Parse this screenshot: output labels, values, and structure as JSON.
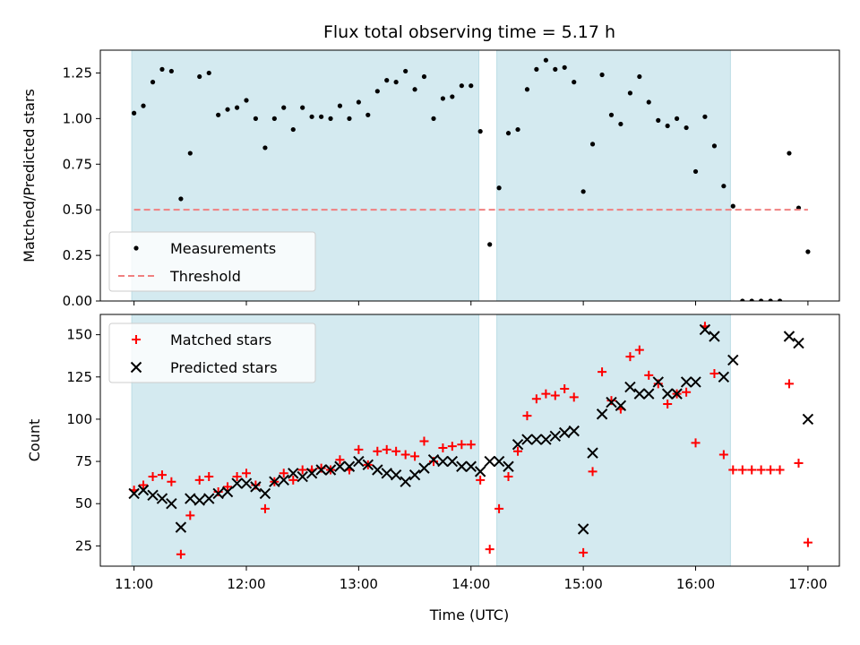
{
  "chart_data": {
    "type": "scatter",
    "title": "Flux total observing time = 5.17 h",
    "xlabel": "Time (UTC)",
    "x_ticks": [
      "11:00",
      "12:00",
      "13:00",
      "14:00",
      "15:00",
      "16:00",
      "17:00"
    ],
    "x_unit": "hours UTC",
    "shaded_intervals": [
      [
        10.98,
        14.07
      ],
      [
        14.23,
        16.31
      ]
    ],
    "shade_color": "#d4eaf0",
    "panels": [
      {
        "ylabel": "Matched/Predicted stars",
        "ylim": [
          0,
          1.375
        ],
        "y_ticks": [
          "0.00",
          "0.25",
          "0.50",
          "0.75",
          "1.00",
          "1.25"
        ],
        "legend_position": "lower-left",
        "series": [
          {
            "name": "Measurements",
            "marker": "dot",
            "color": "#000000",
            "points": [
              [
                11.0,
                1.03
              ],
              [
                11.083,
                1.07
              ],
              [
                11.167,
                1.2
              ],
              [
                11.25,
                1.27
              ],
              [
                11.333,
                1.26
              ],
              [
                11.417,
                0.56
              ],
              [
                11.5,
                0.81
              ],
              [
                11.583,
                1.23
              ],
              [
                11.667,
                1.25
              ],
              [
                11.75,
                1.02
              ],
              [
                11.833,
                1.05
              ],
              [
                11.917,
                1.06
              ],
              [
                12.0,
                1.1
              ],
              [
                12.083,
                1.0
              ],
              [
                12.167,
                0.84
              ],
              [
                12.25,
                1.0
              ],
              [
                12.333,
                1.06
              ],
              [
                12.417,
                0.94
              ],
              [
                12.5,
                1.06
              ],
              [
                12.583,
                1.01
              ],
              [
                12.667,
                1.01
              ],
              [
                12.75,
                1.0
              ],
              [
                12.833,
                1.07
              ],
              [
                12.917,
                1.0
              ],
              [
                13.0,
                1.09
              ],
              [
                13.083,
                1.02
              ],
              [
                13.167,
                1.15
              ],
              [
                13.25,
                1.21
              ],
              [
                13.333,
                1.2
              ],
              [
                13.417,
                1.26
              ],
              [
                13.5,
                1.16
              ],
              [
                13.583,
                1.23
              ],
              [
                13.667,
                1.0
              ],
              [
                13.75,
                1.11
              ],
              [
                13.833,
                1.12
              ],
              [
                13.917,
                1.18
              ],
              [
                14.0,
                1.18
              ],
              [
                14.083,
                0.93
              ],
              [
                14.167,
                0.31
              ],
              [
                14.25,
                0.62
              ],
              [
                14.333,
                0.92
              ],
              [
                14.417,
                0.94
              ],
              [
                14.5,
                1.16
              ],
              [
                14.583,
                1.27
              ],
              [
                14.667,
                1.32
              ],
              [
                14.75,
                1.27
              ],
              [
                14.833,
                1.28
              ],
              [
                14.917,
                1.2
              ],
              [
                15.0,
                0.6
              ],
              [
                15.083,
                0.86
              ],
              [
                15.167,
                1.24
              ],
              [
                15.25,
                1.02
              ],
              [
                15.333,
                0.97
              ],
              [
                15.417,
                1.14
              ],
              [
                15.5,
                1.23
              ],
              [
                15.583,
                1.09
              ],
              [
                15.667,
                0.99
              ],
              [
                15.75,
                0.96
              ],
              [
                15.833,
                1.0
              ],
              [
                15.917,
                0.95
              ],
              [
                16.0,
                0.71
              ],
              [
                16.083,
                1.01
              ],
              [
                16.167,
                0.85
              ],
              [
                16.25,
                0.63
              ],
              [
                16.333,
                0.52
              ],
              [
                16.417,
                0.0
              ],
              [
                16.5,
                0.0
              ],
              [
                16.583,
                0.0
              ],
              [
                16.667,
                0.0
              ],
              [
                16.75,
                0.0
              ],
              [
                16.833,
                0.81
              ],
              [
                16.917,
                0.51
              ],
              [
                17.0,
                0.27
              ]
            ]
          },
          {
            "name": "Threshold",
            "marker": "dashed-line",
            "color": "#f08080",
            "y": 0.5,
            "x_range": [
              11.0,
              17.0
            ]
          }
        ]
      },
      {
        "ylabel": "Count",
        "ylim": [
          13,
          162
        ],
        "y_ticks": [
          "25",
          "50",
          "75",
          "100",
          "125",
          "150"
        ],
        "legend_position": "upper-left",
        "series": [
          {
            "name": "Matched stars",
            "marker": "plus",
            "color": "#ff0000",
            "points": [
              [
                11.0,
                58
              ],
              [
                11.083,
                61
              ],
              [
                11.167,
                66
              ],
              [
                11.25,
                67
              ],
              [
                11.333,
                63
              ],
              [
                11.417,
                20
              ],
              [
                11.5,
                43
              ],
              [
                11.583,
                64
              ],
              [
                11.667,
                66
              ],
              [
                11.75,
                57
              ],
              [
                11.833,
                60
              ],
              [
                11.917,
                66
              ],
              [
                12.0,
                68
              ],
              [
                12.083,
                61
              ],
              [
                12.167,
                47
              ],
              [
                12.25,
                63
              ],
              [
                12.333,
                68
              ],
              [
                12.417,
                64
              ],
              [
                12.5,
                70
              ],
              [
                12.583,
                70
              ],
              [
                12.667,
                71
              ],
              [
                12.75,
                70
              ],
              [
                12.833,
                76
              ],
              [
                12.917,
                70
              ],
              [
                13.0,
                82
              ],
              [
                13.083,
                73
              ],
              [
                13.167,
                81
              ],
              [
                13.25,
                82
              ],
              [
                13.333,
                81
              ],
              [
                13.417,
                79
              ],
              [
                13.5,
                78
              ],
              [
                13.583,
                87
              ],
              [
                13.667,
                75
              ],
              [
                13.75,
                83
              ],
              [
                13.833,
                84
              ],
              [
                13.917,
                85
              ],
              [
                14.0,
                85
              ],
              [
                14.083,
                64
              ],
              [
                14.167,
                23
              ],
              [
                14.25,
                47
              ],
              [
                14.333,
                66
              ],
              [
                14.417,
                81
              ],
              [
                14.5,
                102
              ],
              [
                14.583,
                112
              ],
              [
                14.667,
                115
              ],
              [
                14.75,
                114
              ],
              [
                14.833,
                118
              ],
              [
                14.917,
                113
              ],
              [
                15.0,
                21
              ],
              [
                15.083,
                69
              ],
              [
                15.167,
                128
              ],
              [
                15.25,
                111
              ],
              [
                15.333,
                106
              ],
              [
                15.417,
                137
              ],
              [
                15.5,
                141
              ],
              [
                15.583,
                126
              ],
              [
                15.667,
                121
              ],
              [
                15.75,
                109
              ],
              [
                15.833,
                115
              ],
              [
                15.917,
                116
              ],
              [
                16.0,
                86
              ],
              [
                16.083,
                155
              ],
              [
                16.167,
                127
              ],
              [
                16.25,
                79
              ],
              [
                16.333,
                70
              ],
              [
                16.417,
                70
              ],
              [
                16.5,
                70
              ],
              [
                16.583,
                70
              ],
              [
                16.667,
                70
              ],
              [
                16.75,
                70
              ],
              [
                16.833,
                121
              ],
              [
                16.917,
                74
              ],
              [
                17.0,
                27
              ]
            ]
          },
          {
            "name": "Predicted stars",
            "marker": "x",
            "color": "#000000",
            "points": [
              [
                11.0,
                56
              ],
              [
                11.083,
                58
              ],
              [
                11.167,
                55
              ],
              [
                11.25,
                53
              ],
              [
                11.333,
                50
              ],
              [
                11.417,
                36
              ],
              [
                11.5,
                53
              ],
              [
                11.583,
                52
              ],
              [
                11.667,
                53
              ],
              [
                11.75,
                56
              ],
              [
                11.833,
                57
              ],
              [
                11.917,
                62
              ],
              [
                12.0,
                62
              ],
              [
                12.083,
                60
              ],
              [
                12.167,
                56
              ],
              [
                12.25,
                63
              ],
              [
                12.333,
                64
              ],
              [
                12.417,
                68
              ],
              [
                12.5,
                66
              ],
              [
                12.583,
                68
              ],
              [
                12.667,
                70
              ],
              [
                12.75,
                70
              ],
              [
                12.833,
                72
              ],
              [
                12.917,
                72
              ],
              [
                13.0,
                75
              ],
              [
                13.083,
                73
              ],
              [
                13.167,
                70
              ],
              [
                13.25,
                68
              ],
              [
                13.333,
                67
              ],
              [
                13.417,
                63
              ],
              [
                13.5,
                67
              ],
              [
                13.583,
                71
              ],
              [
                13.667,
                76
              ],
              [
                13.75,
                75
              ],
              [
                13.833,
                75
              ],
              [
                13.917,
                72
              ],
              [
                14.0,
                72
              ],
              [
                14.083,
                69
              ],
              [
                14.167,
                75
              ],
              [
                14.25,
                75
              ],
              [
                14.333,
                72
              ],
              [
                14.417,
                85
              ],
              [
                14.5,
                88
              ],
              [
                14.583,
                88
              ],
              [
                14.667,
                88
              ],
              [
                14.75,
                90
              ],
              [
                14.833,
                92
              ],
              [
                14.917,
                93
              ],
              [
                15.0,
                35
              ],
              [
                15.083,
                80
              ],
              [
                15.167,
                103
              ],
              [
                15.25,
                110
              ],
              [
                15.333,
                108
              ],
              [
                15.417,
                119
              ],
              [
                15.5,
                115
              ],
              [
                15.583,
                115
              ],
              [
                15.667,
                122
              ],
              [
                15.75,
                115
              ],
              [
                15.833,
                115
              ],
              [
                15.917,
                122
              ],
              [
                16.0,
                122
              ],
              [
                16.083,
                153
              ],
              [
                16.167,
                149
              ],
              [
                16.25,
                125
              ],
              [
                16.333,
                135
              ],
              [
                16.833,
                149
              ],
              [
                16.917,
                145
              ],
              [
                17.0,
                100
              ]
            ]
          }
        ]
      }
    ]
  }
}
